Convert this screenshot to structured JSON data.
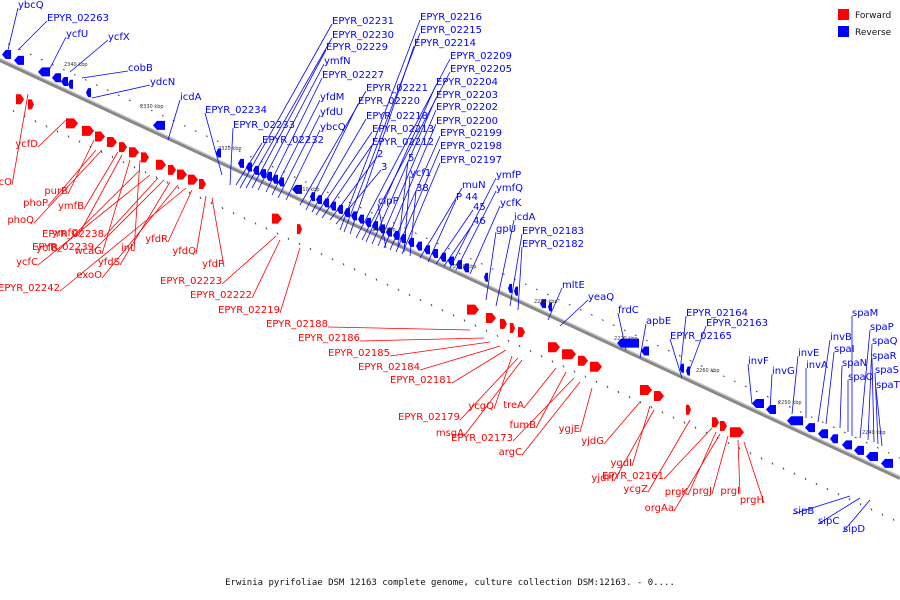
{
  "colors": {
    "forward": "#ff0000",
    "reverse": "#0000ff",
    "axis": "#888888"
  },
  "legend": {
    "forward": "Forward",
    "reverse": "Reverse"
  },
  "caption": "Erwinia pyrifoliae DSM 12163 complete genome, culture collection DSM:12163. - 0....",
  "kbp_ticks": [
    "2340 kbp",
    "2330 kbp",
    "2320 kbp",
    "2310 kbp",
    "2300 kbp",
    "2290 kbp",
    "2280 kbp",
    "2270 kbp",
    "2260 kbp",
    "2250 kbp",
    "2240 kbp"
  ],
  "reverse_labels": [
    "ybcQ",
    "EPYR_02263",
    "ycfU",
    "ycfX",
    "cobB",
    "ydcN",
    "icdA",
    "EPYR_02234",
    "EPYR_02233",
    "EPYR_02232",
    "EPYR_02231",
    "EPYR_02230",
    "EPYR_02229",
    "ymfN",
    "EPYR_02227",
    "yfdM",
    "yfdU",
    "ybcQ",
    "EPYR_02221",
    "EPYR_02220",
    "EPYR_02218",
    "EPYR_02213",
    "EPYR_02212",
    "2",
    "3",
    "EPYR_02216",
    "EPYR_02215",
    "EPYR_02214",
    "EPYR_02209",
    "EPYR_02205",
    "EPYR_02204",
    "EPYR_02203",
    "EPYR_02202",
    "EPYR_02200",
    "EPYR_02199",
    "EPYR_02198",
    "EPYR_02197",
    "5",
    "ycf1",
    "38",
    "clpP",
    "muN",
    "P 44",
    "45",
    "46",
    "ymfP",
    "ymfQ",
    "ycfK",
    "gpU",
    "icdA",
    "EPYR_02183",
    "EPYR_02182",
    "mltE",
    "yeaQ",
    "frdC",
    "apbE",
    "EPYR_02164",
    "EPYR_02163",
    "EPYR_02165",
    "invF",
    "invG",
    "invE",
    "invA",
    "invB",
    "spaI",
    "spaN",
    "spaO",
    "spaM",
    "spaP",
    "spaQ",
    "spaR",
    "spaS",
    "spaT",
    "sipB",
    "sipC",
    "sipD"
  ],
  "forward_labels": [
    "ycfD",
    "ydcO",
    "purB",
    "phoP",
    "phoQ",
    "ymfB",
    "ymfC",
    "wcaG",
    "int",
    "EPYR_02238",
    "ycfB",
    "EPYR_02239",
    "yfdS",
    "ycfC",
    "exoO",
    "EPYR_02242",
    "yfdR",
    "yfdQ",
    "yfdP",
    "EPYR_02223",
    "EPYR_02222",
    "EPYR_02219",
    "EPYR_02188",
    "EPYR_02186",
    "EPYR_02185",
    "EPYR_02184",
    "EPYR_02181",
    "ycgQ",
    "EPYR_02179",
    "msgA",
    "treA",
    "fumB",
    "EPYR_02173",
    "argC",
    "ygjE",
    "yjdG",
    "ygdI",
    "yjdH",
    "ycgZ",
    "EPYR_02161",
    "prgK",
    "orgAa",
    "prgJ",
    "prgI",
    "prgH"
  ]
}
